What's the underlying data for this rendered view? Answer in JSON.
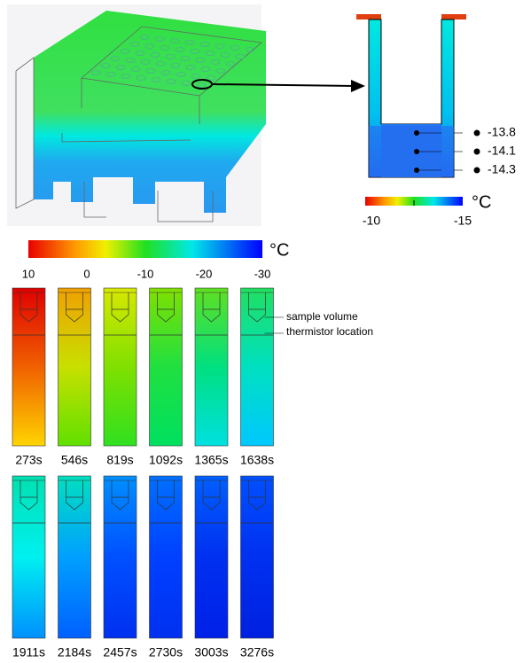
{
  "inset": {
    "readings": [
      "-13.8",
      "-14.1",
      "-14.3"
    ],
    "colorbar": {
      "ticks": [
        "-10",
        "-15"
      ],
      "unit": "°C"
    }
  },
  "colorbar": {
    "ticks": [
      "10",
      "0",
      "-10",
      "-20",
      "-30"
    ],
    "unit": "°C"
  },
  "annotations": [
    "sample volume",
    "thermistor location"
  ],
  "frames": [
    "273s",
    "546s",
    "819s",
    "1092s",
    "1365s",
    "1638s",
    "1911s",
    "2184s",
    "2457s",
    "2730s",
    "3003s",
    "3276s"
  ]
}
